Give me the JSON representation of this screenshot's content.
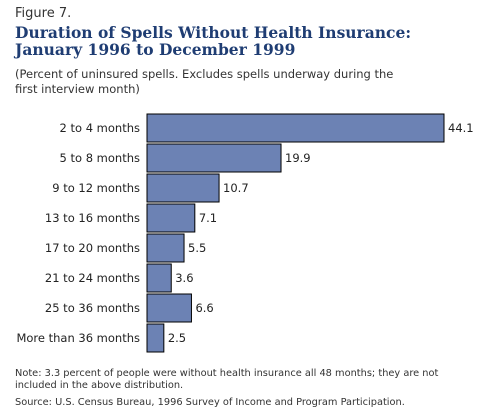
{
  "figure_label": "Figure 7.",
  "title_lines": [
    "Duration of Spells Without Health Insurance:",
    "January 1996 to December 1999"
  ],
  "subtitle_lines": [
    "(Percent of uninsured spells. Excludes spells underway during the",
    "first interview month)"
  ],
  "note_lines": [
    "Note: 3.3 percent of people were without health insurance all 48 months; they are not",
    "included in the above distribution."
  ],
  "source": "Source: U.S. Census Bureau, 1996 Survey of Income and Program Participation.",
  "colors": {
    "bar_fill": "#6c82b4",
    "bar_stroke": "#000000",
    "text": "#222222",
    "title": "#1f3d73"
  },
  "chart_data": {
    "type": "bar",
    "orientation": "horizontal",
    "categories": [
      "2 to 4 months",
      "5 to 8 months",
      "9 to 12 months",
      "13 to 16 months",
      "17 to 20 months",
      "21 to 24 months",
      "25 to 36 months",
      "More than 36 months"
    ],
    "values": [
      44.1,
      19.9,
      10.7,
      7.1,
      5.5,
      3.6,
      6.6,
      2.5
    ],
    "value_labels": [
      "44.1",
      "19.9",
      "10.7",
      "7.1",
      "5.5",
      "3.6",
      "6.6",
      "2.5"
    ],
    "xlim": [
      0,
      44.1
    ],
    "grid": false,
    "axes_shown": false
  }
}
